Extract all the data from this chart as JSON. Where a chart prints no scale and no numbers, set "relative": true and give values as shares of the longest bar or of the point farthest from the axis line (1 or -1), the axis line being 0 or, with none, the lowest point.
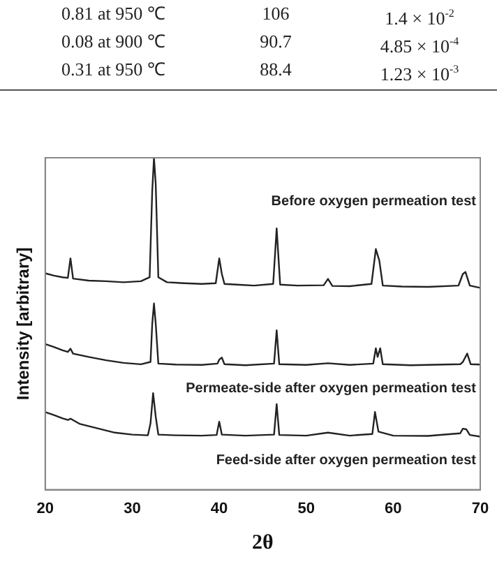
{
  "chart_data": [
    {
      "type": "other",
      "annotations": [
        "0.81 at 950 ℃",
        "106",
        "1.4 × 10$^{-2}$",
        "0.08 at 900 ℃",
        "90.7",
        "4.85 × 10$^{-4}$",
        "0.31 at 950 ℃",
        "88.4",
        "1.23 × 10$^{-3}$"
      ]
    },
    {
      "type": "line",
      "relative": true,
      "xlabel": "2θ",
      "ylabel": "Intensity [arbitrary]",
      "xlim": [
        20,
        70
      ],
      "xticks": [
        20,
        30,
        40,
        50,
        60,
        70
      ],
      "legend": false,
      "grid": false,
      "series": [
        {
          "name": "Before oxygen permeation test",
          "color": "#222222",
          "x": [
            20,
            21,
            22,
            22.6,
            22.9,
            23.2,
            25,
            27,
            29,
            31,
            32.0,
            32.3,
            32.5,
            32.7,
            33.0,
            34,
            36,
            38,
            39.6,
            40.0,
            40.3,
            40.6,
            42,
            44,
            46.2,
            46.6,
            47.0,
            49,
            52,
            52.5,
            53,
            55,
            57.5,
            58.0,
            58.4,
            58.8,
            61,
            64,
            67.5,
            68.0,
            68.3,
            68.8,
            70
          ],
          "values": [
            0.652,
            0.645,
            0.64,
            0.638,
            0.697,
            0.636,
            0.63,
            0.628,
            0.625,
            0.628,
            0.64,
            0.9,
            1.0,
            0.92,
            0.64,
            0.625,
            0.622,
            0.62,
            0.622,
            0.697,
            0.65,
            0.62,
            0.618,
            0.615,
            0.62,
            0.787,
            0.618,
            0.615,
            0.616,
            0.635,
            0.614,
            0.613,
            0.62,
            0.725,
            0.69,
            0.615,
            0.612,
            0.611,
            0.615,
            0.65,
            0.656,
            0.615,
            0.608
          ]
        },
        {
          "name": "Permeate-side after oxygen permeation test",
          "color": "#222222",
          "x": [
            20,
            21,
            22,
            22.6,
            22.9,
            23.2,
            25,
            27,
            29,
            31,
            32.1,
            32.3,
            32.5,
            32.7,
            33.0,
            35,
            38,
            39.8,
            40.0,
            40.3,
            40.6,
            43,
            46.3,
            46.6,
            46.9,
            50,
            52.5,
            55,
            57.7,
            58.0,
            58.2,
            58.5,
            58.8,
            62,
            67.7,
            68.0,
            68.5,
            68.9,
            70
          ],
          "values": [
            0.439,
            0.43,
            0.42,
            0.415,
            0.425,
            0.41,
            0.4,
            0.39,
            0.382,
            0.378,
            0.385,
            0.5,
            0.561,
            0.5,
            0.38,
            0.377,
            0.376,
            0.38,
            0.392,
            0.398,
            0.378,
            0.375,
            0.38,
            0.48,
            0.378,
            0.376,
            0.381,
            0.376,
            0.38,
            0.426,
            0.4,
            0.426,
            0.378,
            0.375,
            0.378,
            0.385,
            0.41,
            0.378,
            0.377
          ]
        },
        {
          "name": "Feed-side after oxygen permeation test",
          "color": "#222222",
          "x": [
            20,
            21,
            22,
            22.6,
            22.9,
            24,
            26,
            28,
            30,
            31.8,
            32.1,
            32.4,
            32.7,
            33.0,
            35,
            38,
            39.7,
            40.0,
            40.3,
            43,
            46.3,
            46.6,
            46.9,
            50,
            52.5,
            55,
            57.6,
            57.9,
            58.3,
            60,
            64,
            67.7,
            68.0,
            68.4,
            68.8,
            70
          ],
          "values": [
            0.234,
            0.225,
            0.215,
            0.21,
            0.214,
            0.198,
            0.185,
            0.172,
            0.166,
            0.164,
            0.2,
            0.291,
            0.22,
            0.166,
            0.164,
            0.163,
            0.165,
            0.205,
            0.166,
            0.163,
            0.166,
            0.258,
            0.165,
            0.163,
            0.172,
            0.163,
            0.168,
            0.234,
            0.175,
            0.163,
            0.162,
            0.17,
            0.184,
            0.182,
            0.165,
            0.16
          ]
        }
      ]
    }
  ]
}
